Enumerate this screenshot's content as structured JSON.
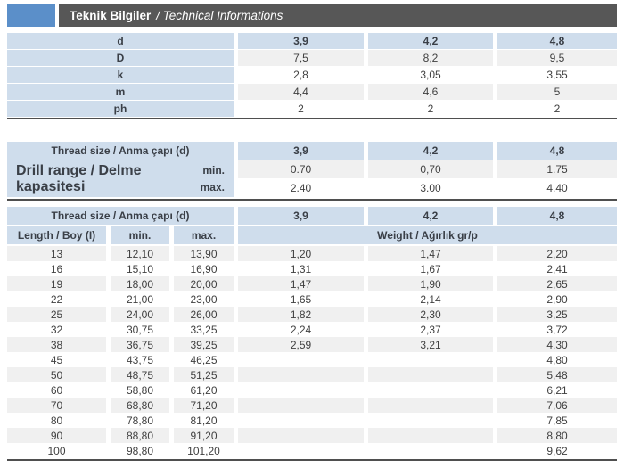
{
  "title": {
    "tr": "Teknik Bilgiler",
    "rest": "/ Technical Informations"
  },
  "colors": {
    "accent_blue": "#5b8fc9",
    "title_bar_gray": "#575757",
    "header_cell_blue": "#cfddec",
    "stripe_gray": "#f0f0f0",
    "border_dark": "#4f4f4f"
  },
  "table1": {
    "header": {
      "label": "d",
      "values": [
        "3,9",
        "4,2",
        "4,8"
      ]
    },
    "rows": [
      {
        "label": "D",
        "values": [
          "7,5",
          "8,2",
          "9,5"
        ]
      },
      {
        "label": "k",
        "values": [
          "2,8",
          "3,05",
          "3,55"
        ]
      },
      {
        "label": "m",
        "values": [
          "4,4",
          "4,6",
          "5"
        ]
      },
      {
        "label": "ph",
        "values": [
          "2",
          "2",
          "2"
        ]
      }
    ]
  },
  "table2": {
    "header": {
      "label": "Thread size / Anma çapı (d)",
      "values": [
        "3,9",
        "4,2",
        "4,8"
      ]
    },
    "row_label": "Drill range / Delme kapasitesi",
    "min_label": "min.",
    "max_label": "max.",
    "min_values": [
      "0.70",
      "0,70",
      "1.75"
    ],
    "max_values": [
      "2.40",
      "3.00",
      "4.40"
    ]
  },
  "table3": {
    "header": {
      "label": "Thread size / Anma çapı (d)",
      "values": [
        "3,9",
        "4,2",
        "4,8"
      ]
    },
    "subheader": {
      "length": "Length / Boy (I)",
      "min": "min.",
      "max": "max.",
      "weight": "Weight / Ağırlık gr/p"
    },
    "rows": [
      {
        "length": "13",
        "min": "12,10",
        "max": "13,90",
        "w39": "1,20",
        "w42": "1,47",
        "w48": "2,20"
      },
      {
        "length": "16",
        "min": "15,10",
        "max": "16,90",
        "w39": "1,31",
        "w42": "1,67",
        "w48": "2,41"
      },
      {
        "length": "19",
        "min": "18,00",
        "max": "20,00",
        "w39": "1,47",
        "w42": "1,90",
        "w48": "2,65"
      },
      {
        "length": "22",
        "min": "21,00",
        "max": "23,00",
        "w39": "1,65",
        "w42": "2,14",
        "w48": "2,90"
      },
      {
        "length": "25",
        "min": "24,00",
        "max": "26,00",
        "w39": "1,82",
        "w42": "2,30",
        "w48": "3,25"
      },
      {
        "length": "32",
        "min": "30,75",
        "max": "33,25",
        "w39": "2,24",
        "w42": "2,37",
        "w48": "3,72"
      },
      {
        "length": "38",
        "min": "36,75",
        "max": "39,25",
        "w39": "2,59",
        "w42": "3,21",
        "w48": "4,30"
      },
      {
        "length": "45",
        "min": "43,75",
        "max": "46,25",
        "w39": "",
        "w42": "",
        "w48": "4,80"
      },
      {
        "length": "50",
        "min": "48,75",
        "max": "51,25",
        "w39": "",
        "w42": "",
        "w48": "5,48"
      },
      {
        "length": "60",
        "min": "58,80",
        "max": "61,20",
        "w39": "",
        "w42": "",
        "w48": "6,21"
      },
      {
        "length": "70",
        "min": "68,80",
        "max": "71,20",
        "w39": "",
        "w42": "",
        "w48": "7,06"
      },
      {
        "length": "80",
        "min": "78,80",
        "max": "81,20",
        "w39": "",
        "w42": "",
        "w48": "7,85"
      },
      {
        "length": "90",
        "min": "88,80",
        "max": "91,20",
        "w39": "",
        "w42": "",
        "w48": "8,80"
      },
      {
        "length": "100",
        "min": "98,80",
        "max": "101,20",
        "w39": "",
        "w42": "",
        "w48": "9,62"
      }
    ]
  }
}
